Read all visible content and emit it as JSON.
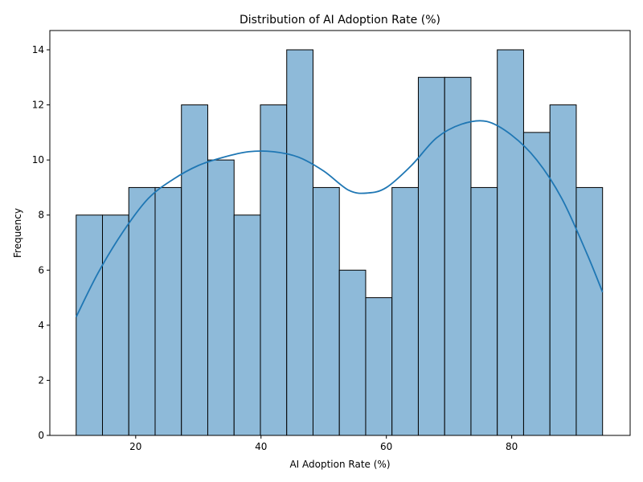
{
  "chart_data": {
    "type": "bar",
    "title": "Distribution of AI Adoption Rate (%)",
    "xlabel": "AI Adoption Rate (%)",
    "ylabel": "Frequency",
    "bin_start": 10.5,
    "bin_width": 4.2,
    "counts": [
      8,
      8,
      9,
      9,
      12,
      10,
      8,
      12,
      14,
      9,
      6,
      5,
      9,
      13,
      13,
      9,
      14,
      11,
      12,
      9
    ],
    "xlim": [
      6.3,
      98.9
    ],
    "ylim": [
      0,
      14.7
    ],
    "xticks": [
      20,
      40,
      60,
      80
    ],
    "yticks": [
      0,
      2,
      4,
      6,
      8,
      10,
      12,
      14
    ],
    "kde": {
      "x": [
        10.5,
        14,
        18,
        22,
        26,
        30,
        34,
        38,
        42,
        46,
        50,
        54,
        57,
        60,
        64,
        68,
        72,
        76,
        80,
        84,
        88,
        92,
        94.5
      ],
      "y": [
        4.3,
        5.9,
        7.4,
        8.6,
        9.3,
        9.8,
        10.1,
        10.3,
        10.3,
        10.1,
        9.6,
        8.9,
        8.8,
        9.0,
        9.8,
        10.8,
        11.3,
        11.4,
        10.9,
        10.0,
        8.6,
        6.6,
        5.2
      ]
    },
    "colors": {
      "bar_fill": "#8ebad9",
      "bar_edge": "#000000",
      "kde_line": "#1f77b4"
    },
    "grid": false,
    "legend": "none"
  }
}
